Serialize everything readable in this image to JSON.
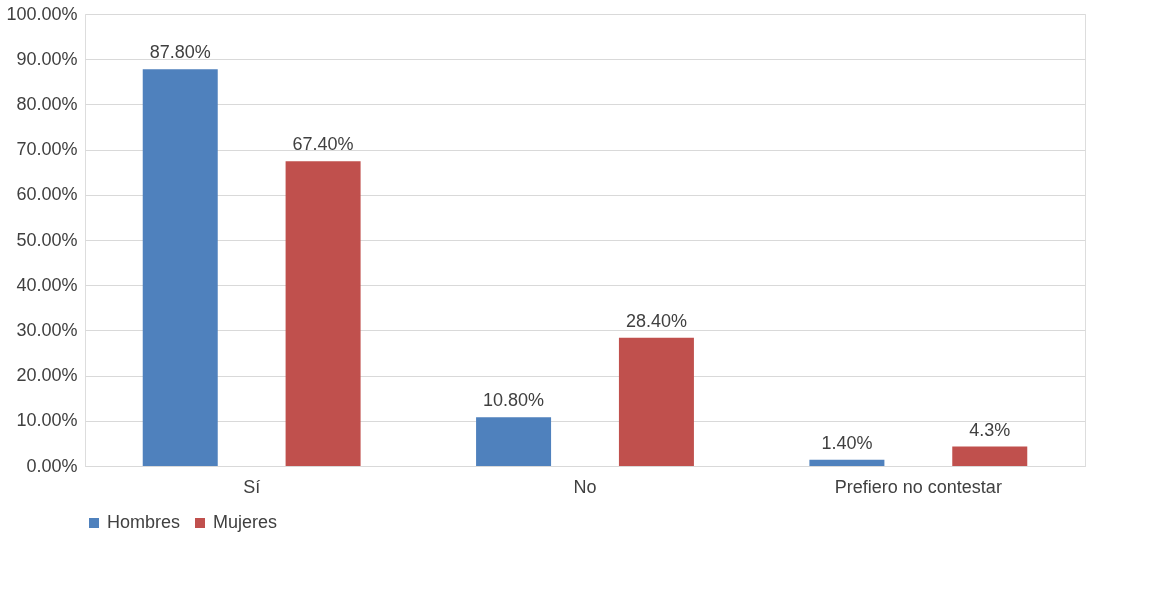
{
  "chart_data": {
    "type": "bar",
    "categories": [
      "Sí",
      "No",
      "Prefiero no contestar"
    ],
    "series": [
      {
        "name": "Hombres",
        "color": "#4f81bd",
        "values": [
          87.8,
          10.8,
          1.4
        ],
        "value_labels": [
          "87.80%",
          "10.80%",
          "1.40%"
        ]
      },
      {
        "name": "Mujeres",
        "color": "#c0504d",
        "values": [
          67.4,
          28.4,
          4.3
        ],
        "value_labels": [
          "67.40%",
          "28.40%",
          "4.3%"
        ]
      }
    ],
    "ylim": [
      0,
      100
    ],
    "yticks": [
      {
        "value": 0,
        "label": "0.00%"
      },
      {
        "value": 10,
        "label": "10.00%"
      },
      {
        "value": 20,
        "label": "20.00%"
      },
      {
        "value": 30,
        "label": "30.00%"
      },
      {
        "value": 40,
        "label": "40.00%"
      },
      {
        "value": 50,
        "label": "50.00%"
      },
      {
        "value": 60,
        "label": "60.00%"
      },
      {
        "value": 70,
        "label": "70.00%"
      },
      {
        "value": 80,
        "label": "80.00%"
      },
      {
        "value": 90,
        "label": "90.00%"
      },
      {
        "value": 100,
        "label": "100.00%"
      }
    ],
    "grid": "y",
    "legend": "bottom"
  }
}
